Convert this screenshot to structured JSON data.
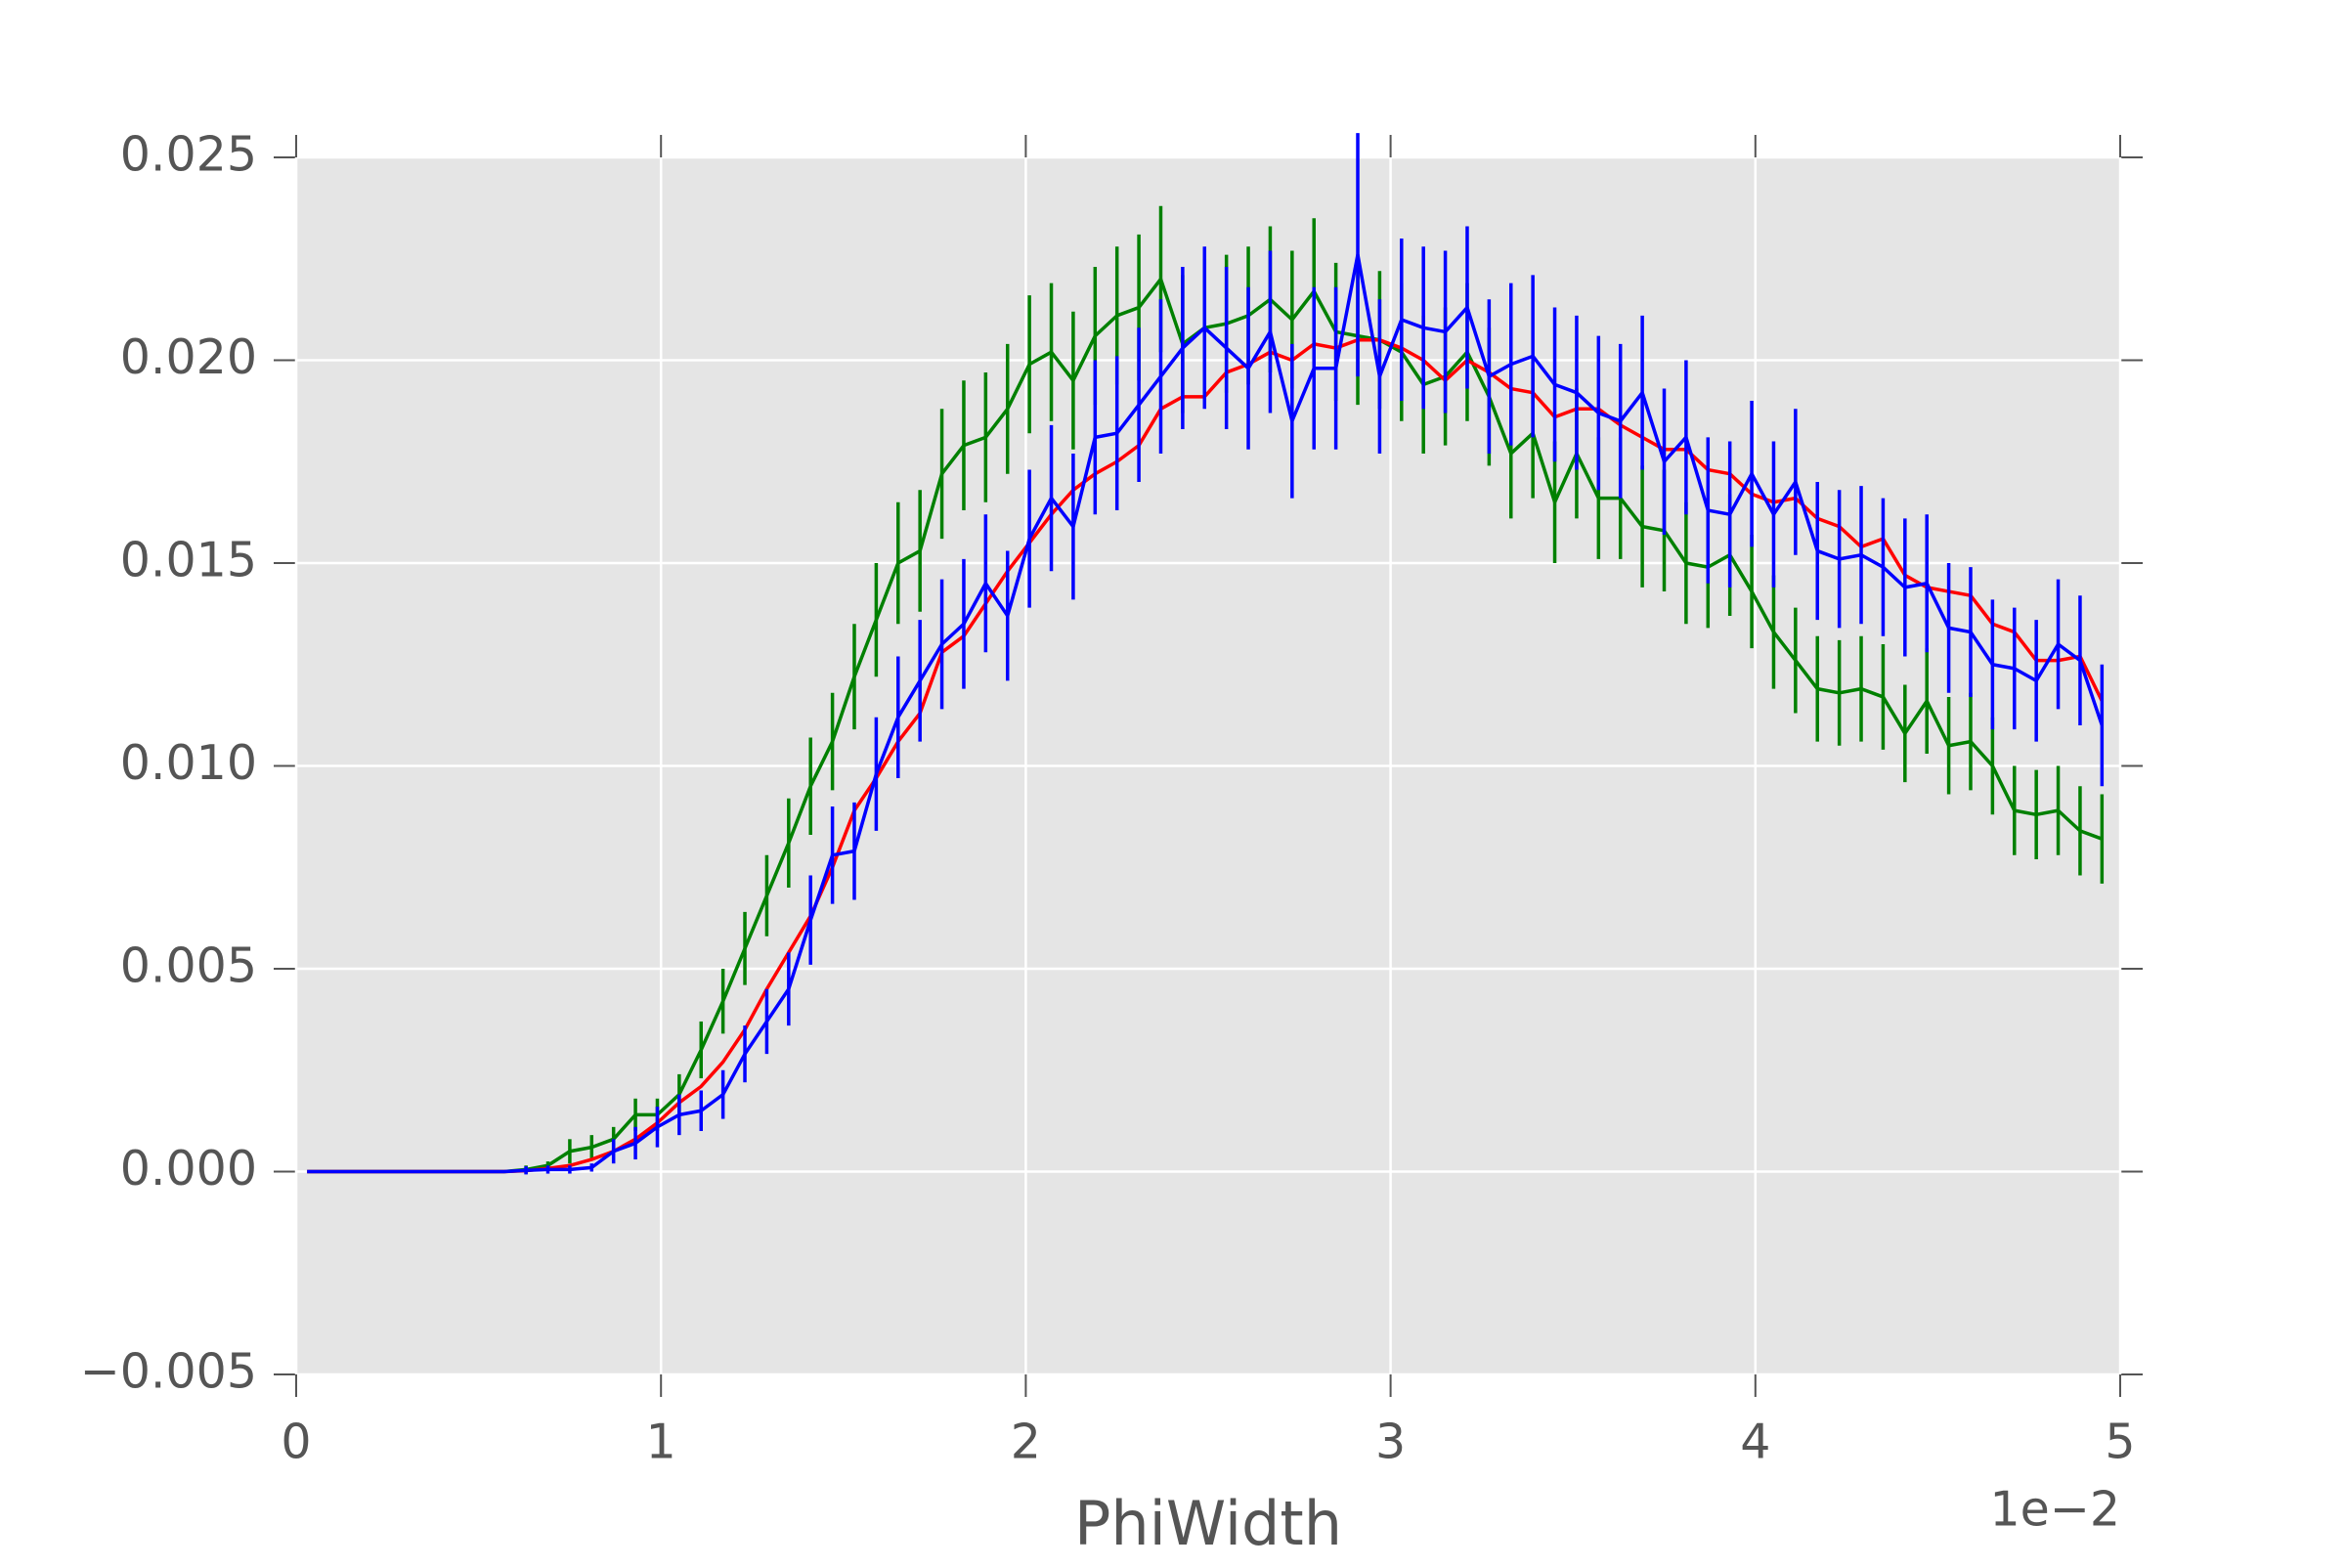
{
  "chart_data": {
    "type": "errorbar",
    "xlabel": "PhiWidth",
    "x_offset_label": "1e−2",
    "xlim": [
      0,
      5
    ],
    "xticks": [
      0,
      1,
      2,
      3,
      4,
      5
    ],
    "ylim": [
      -0.005,
      0.025
    ],
    "yticks": [
      {
        "value": -0.005,
        "label": "−0.005"
      },
      {
        "value": 0,
        "label": "0.000"
      },
      0.005,
      {
        "value": 0.01,
        "label": "0.010"
      },
      0.015,
      {
        "value": 0.02,
        "label": "0.020"
      },
      0.025
    ],
    "grid": true,
    "x": [
      0.03,
      0.09,
      0.15,
      0.21,
      0.27,
      0.33,
      0.39,
      0.45,
      0.51,
      0.57,
      0.63,
      0.69,
      0.75,
      0.81,
      0.87,
      0.93,
      0.99,
      1.05,
      1.11,
      1.17,
      1.23,
      1.29,
      1.35,
      1.41,
      1.47,
      1.53,
      1.59,
      1.65,
      1.71,
      1.77,
      1.83,
      1.89,
      1.95,
      2.01,
      2.07,
      2.13,
      2.19,
      2.25,
      2.31,
      2.37,
      2.43,
      2.49,
      2.55,
      2.61,
      2.67,
      2.73,
      2.79,
      2.85,
      2.91,
      2.97,
      3.03,
      3.09,
      3.15,
      3.21,
      3.27,
      3.33,
      3.39,
      3.45,
      3.51,
      3.57,
      3.63,
      3.69,
      3.75,
      3.81,
      3.87,
      3.93,
      3.99,
      4.05,
      4.11,
      4.17,
      4.23,
      4.29,
      4.35,
      4.41,
      4.47,
      4.53,
      4.59,
      4.65,
      4.71,
      4.77,
      4.83,
      4.89,
      4.95
    ],
    "series": [
      {
        "color": "#008000",
        "values": [
          0,
          0,
          0,
          0,
          0,
          0,
          0,
          0,
          0,
          0,
          5e-05,
          0.00015,
          0.0005,
          0.0006,
          0.0008,
          0.0014,
          0.0014,
          0.0019,
          0.003,
          0.0042,
          0.0055,
          0.0068,
          0.0081,
          0.0095,
          0.0106,
          0.0122,
          0.0136,
          0.015,
          0.0153,
          0.0172,
          0.0179,
          0.0181,
          0.0188,
          0.0199,
          0.0202,
          0.0195,
          0.0206,
          0.0211,
          0.0213,
          0.022,
          0.0204,
          0.0208,
          0.0209,
          0.0211,
          0.0215,
          0.021,
          0.0217,
          0.0207,
          0.0206,
          0.0205,
          0.0202,
          0.0194,
          0.0196,
          0.0202,
          0.0191,
          0.0177,
          0.0182,
          0.0165,
          0.0177,
          0.0166,
          0.0166,
          0.0159,
          0.0158,
          0.015,
          0.0149,
          0.0152,
          0.0143,
          0.0133,
          0.0126,
          0.0119,
          0.0118,
          0.0119,
          0.0117,
          0.0108,
          0.0116,
          0.0105,
          0.0106,
          0.01,
          0.0089,
          0.0088,
          0.0089,
          0.0084,
          0.0082
        ],
        "errors": [
          0,
          0,
          0,
          0,
          0,
          0,
          0,
          0,
          0,
          0,
          0.0001,
          0.0001,
          0.0003,
          0.0003,
          0.0003,
          0.0004,
          0.0004,
          0.0005,
          0.0007,
          0.0008,
          0.0009,
          0.001,
          0.0011,
          0.0012,
          0.0012,
          0.0013,
          0.0014,
          0.0015,
          0.0015,
          0.0016,
          0.0016,
          0.0016,
          0.0016,
          0.0017,
          0.0017,
          0.0017,
          0.0017,
          0.0017,
          0.0018,
          0.0018,
          0.0017,
          0.0017,
          0.0017,
          0.0017,
          0.0018,
          0.0017,
          0.0018,
          0.0017,
          0.0017,
          0.0017,
          0.0017,
          0.0017,
          0.0017,
          0.0017,
          0.0017,
          0.0016,
          0.0016,
          0.0015,
          0.0016,
          0.0015,
          0.0015,
          0.0015,
          0.0015,
          0.0015,
          0.0015,
          0.0015,
          0.0014,
          0.0014,
          0.0013,
          0.0013,
          0.0013,
          0.0013,
          0.0013,
          0.0012,
          0.0013,
          0.0012,
          0.0012,
          0.0012,
          0.0011,
          0.0011,
          0.0011,
          0.0011,
          0.0011
        ]
      },
      {
        "color": "#ff0000",
        "values": [
          0,
          0,
          0,
          0,
          0,
          0,
          0,
          0,
          0,
          0,
          2e-05,
          8e-05,
          0.00015,
          0.0003,
          0.0005,
          0.0008,
          0.0012,
          0.0017,
          0.0021,
          0.0027,
          0.0035,
          0.0045,
          0.0054,
          0.0063,
          0.0075,
          0.0089,
          0.0097,
          0.0106,
          0.0113,
          0.0128,
          0.0132,
          0.014,
          0.0148,
          0.0155,
          0.0162,
          0.0168,
          0.0172,
          0.0175,
          0.0179,
          0.0188,
          0.0191,
          0.0191,
          0.0197,
          0.0199,
          0.0202,
          0.02,
          0.0204,
          0.0203,
          0.0205,
          0.0205,
          0.0203,
          0.02,
          0.0195,
          0.02,
          0.0197,
          0.0193,
          0.0192,
          0.0186,
          0.0188,
          0.0188,
          0.0184,
          0.0181,
          0.0178,
          0.0178,
          0.0173,
          0.0172,
          0.0167,
          0.0165,
          0.0166,
          0.0161,
          0.0159,
          0.0154,
          0.0156,
          0.0147,
          0.0144,
          0.0143,
          0.0142,
          0.0135,
          0.0133,
          0.0126,
          0.0126,
          0.0127,
          0.0116
        ]
      },
      {
        "color": "#0000ff",
        "values": [
          0,
          0,
          0,
          0,
          0,
          0,
          0,
          0,
          0,
          0,
          3e-05,
          5e-05,
          5e-05,
          0.0001,
          0.0005,
          0.0007,
          0.0011,
          0.0014,
          0.0015,
          0.0019,
          0.0029,
          0.0037,
          0.0045,
          0.0062,
          0.0078,
          0.0079,
          0.0098,
          0.0112,
          0.0121,
          0.013,
          0.0135,
          0.0145,
          0.0137,
          0.0156,
          0.0166,
          0.0159,
          0.0181,
          0.0182,
          0.0189,
          0.0196,
          0.0203,
          0.0208,
          0.0203,
          0.0198,
          0.0207,
          0.0185,
          0.0198,
          0.0198,
          0.0226,
          0.0196,
          0.021,
          0.0208,
          0.0207,
          0.0213,
          0.0196,
          0.0199,
          0.0201,
          0.0194,
          0.0192,
          0.0187,
          0.0185,
          0.0192,
          0.0175,
          0.0181,
          0.0163,
          0.0162,
          0.0172,
          0.0162,
          0.017,
          0.0153,
          0.0151,
          0.0152,
          0.0149,
          0.0144,
          0.0145,
          0.0134,
          0.0133,
          0.0125,
          0.0124,
          0.0121,
          0.013,
          0.0126,
          0.011
        ],
        "errors": [
          0,
          0,
          0,
          0,
          0,
          0,
          0,
          0,
          0,
          0,
          0.0001,
          0.0001,
          0.0001,
          0.0001,
          0.0003,
          0.0004,
          0.0005,
          0.0005,
          0.0005,
          0.0006,
          0.0007,
          0.0008,
          0.0009,
          0.0011,
          0.0012,
          0.0012,
          0.0014,
          0.0015,
          0.0015,
          0.0016,
          0.0016,
          0.0017,
          0.0016,
          0.0017,
          0.0018,
          0.0018,
          0.0019,
          0.0019,
          0.0019,
          0.0019,
          0.002,
          0.002,
          0.002,
          0.002,
          0.002,
          0.0019,
          0.002,
          0.002,
          0.003,
          0.0019,
          0.002,
          0.002,
          0.002,
          0.002,
          0.0019,
          0.002,
          0.002,
          0.0019,
          0.0019,
          0.0019,
          0.0019,
          0.0019,
          0.0018,
          0.0019,
          0.0018,
          0.0018,
          0.0018,
          0.0018,
          0.0018,
          0.0017,
          0.0017,
          0.0017,
          0.0017,
          0.0017,
          0.0017,
          0.0016,
          0.0016,
          0.0016,
          0.0015,
          0.0015,
          0.0016,
          0.0016,
          0.0015
        ]
      }
    ]
  }
}
